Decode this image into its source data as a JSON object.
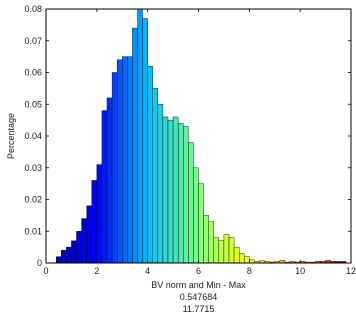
{
  "chart_data": {
    "type": "bar",
    "title": "",
    "xlabel": "BV norm and Min - Max",
    "ylabel": "Percentage",
    "xlim": [
      0,
      12
    ],
    "ylim": [
      0,
      0.08
    ],
    "grid": false,
    "legend": "none",
    "bin_width": 0.2,
    "x": [
      0.5,
      0.7,
      0.9,
      1.1,
      1.3,
      1.5,
      1.7,
      1.9,
      2.1,
      2.3,
      2.5,
      2.7,
      2.9,
      3.1,
      3.3,
      3.5,
      3.7,
      3.9,
      4.1,
      4.3,
      4.5,
      4.7,
      4.9,
      5.1,
      5.3,
      5.5,
      5.7,
      5.9,
      6.1,
      6.3,
      6.5,
      6.7,
      6.9,
      7.1,
      7.3,
      7.5,
      7.7,
      7.9,
      8.1,
      8.3,
      8.5,
      8.7,
      8.9,
      9.1,
      9.3,
      9.5,
      9.7,
      9.9,
      10.1,
      10.3,
      10.5,
      10.7,
      10.9,
      11.1,
      11.3,
      11.5,
      11.7
    ],
    "values": [
      0.002,
      0.004,
      0.005,
      0.007,
      0.01,
      0.014,
      0.018,
      0.026,
      0.031,
      0.048,
      0.052,
      0.06,
      0.064,
      0.065,
      0.065,
      0.074,
      0.08,
      0.077,
      0.062,
      0.055,
      0.05,
      0.046,
      0.045,
      0.046,
      0.044,
      0.043,
      0.038,
      0.03,
      0.025,
      0.015,
      0.013,
      0.008,
      0.007,
      0.009,
      0.008,
      0.005,
      0.003,
      0.002,
      0.001,
      0.0005,
      0.0007,
      0.0005,
      0.0003,
      0.0005,
      0.0008,
      0.0003,
      0.0005,
      0.0003,
      0.0005,
      0.0003,
      0.0003,
      0.0005,
      0.0005,
      0.0008,
      0.0005,
      0.0005,
      0.0005
    ],
    "x_ticks": [
      "0",
      "2",
      "4",
      "6",
      "8",
      "10",
      "12"
    ],
    "y_ticks": [
      "0",
      "0.01",
      "0.02",
      "0.03",
      "0.04",
      "0.05",
      "0.06",
      "0.07",
      "0.08"
    ],
    "annotations": [
      "0.547684",
      "11.7715"
    ],
    "colormap": [
      "#00008f",
      "#0000ff",
      "#00bfff",
      "#7fff7f",
      "#ffff00",
      "#ff8000",
      "#800000"
    ]
  }
}
